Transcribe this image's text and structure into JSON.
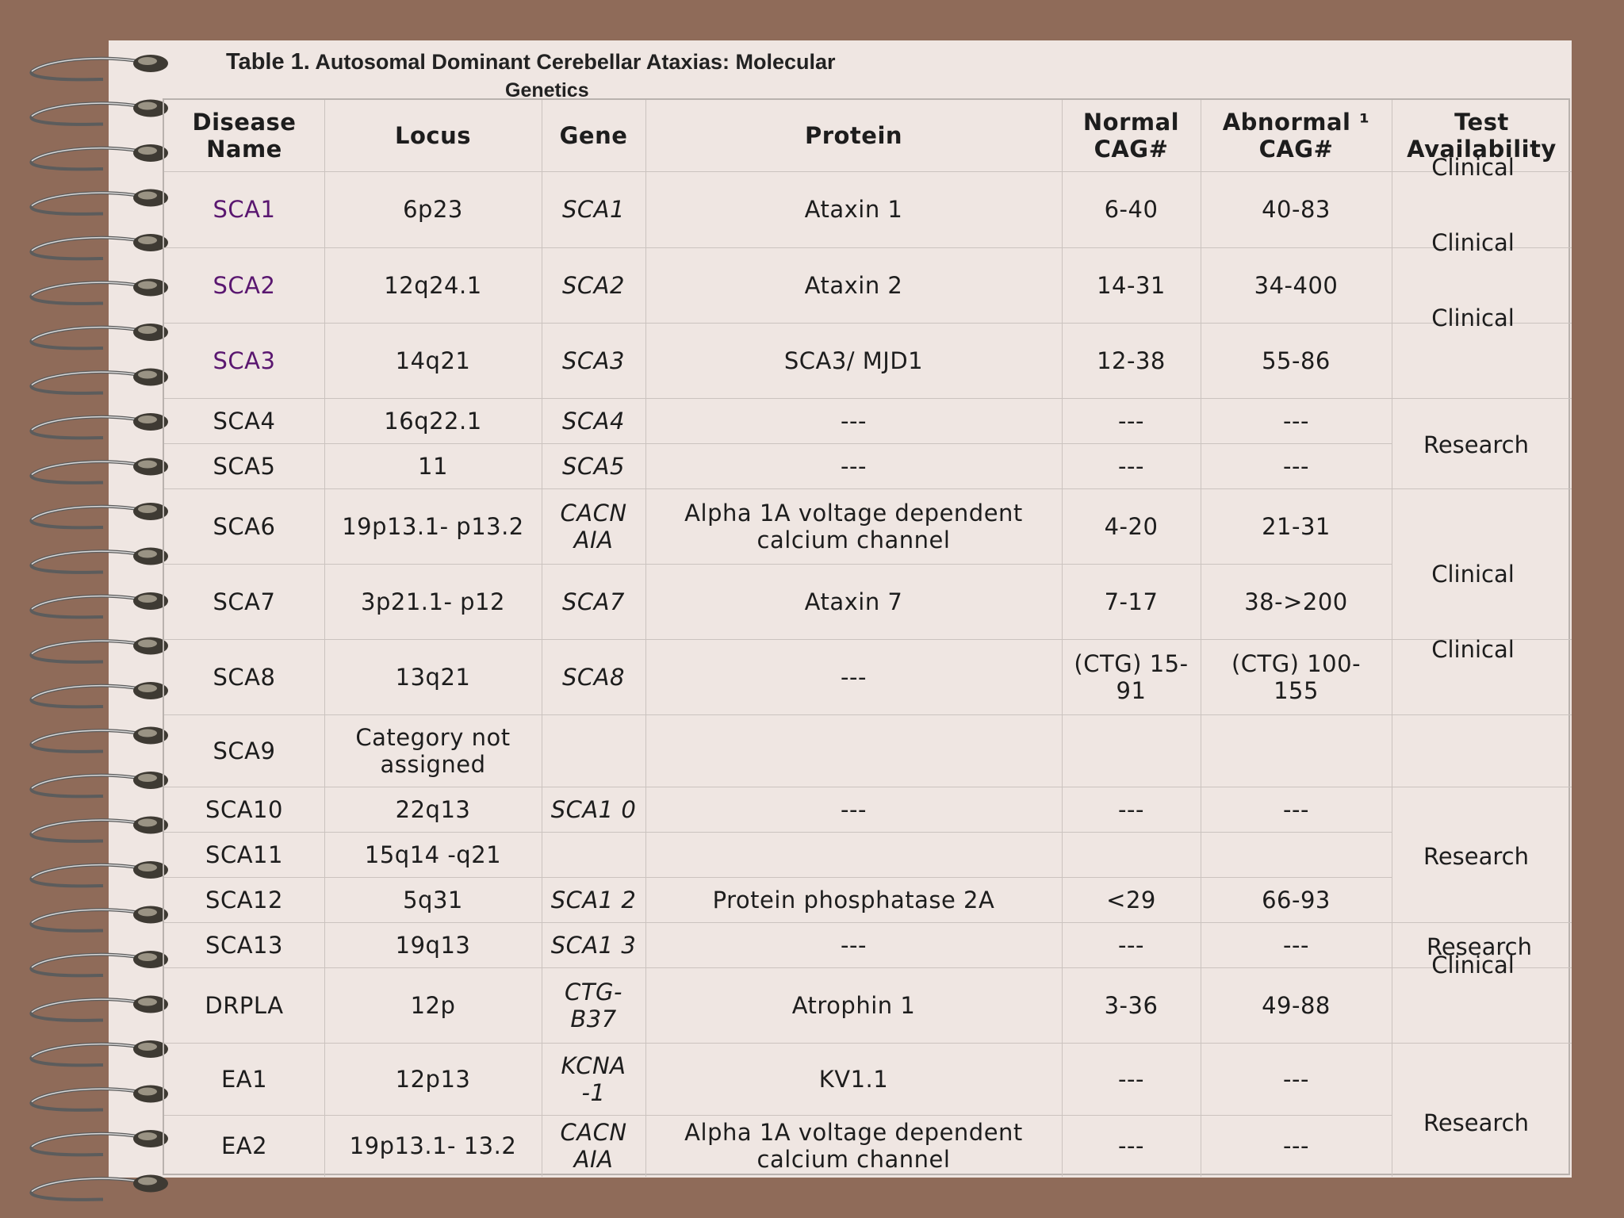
{
  "title": {
    "prefix": "Table 1.",
    "main": "Autosomal Dominant Cerebellar Ataxias: Molecular",
    "continuation": "Genetics"
  },
  "headers": {
    "disease": "Disease Name",
    "locus": "Locus",
    "gene": "Gene",
    "protein": "Protein",
    "normal": "Normal CAG#",
    "abnormal": "Abnormal ¹ CAG#",
    "test": "Test Availability"
  },
  "rows": [
    {
      "disease": "SCA1",
      "locus": "6p23",
      "gene": "SCA1",
      "protein": "Ataxin 1",
      "normal": "6-40",
      "abnormal": "40-83"
    },
    {
      "disease": "SCA2",
      "locus": "12q24.1",
      "gene": "SCA2",
      "protein": "Ataxin 2",
      "normal": "14-31",
      "abnormal": "34-400"
    },
    {
      "disease": "SCA3",
      "locus": "14q21",
      "gene": "SCA3",
      "protein": "SCA3/ MJD1",
      "normal": "12-38",
      "abnormal": "55-86"
    },
    {
      "disease": "SCA4",
      "locus": "16q22.1",
      "gene": "SCA4",
      "protein": "---",
      "normal": "---",
      "abnormal": "---"
    },
    {
      "disease": "SCA5",
      "locus": "11",
      "gene": "SCA5",
      "protein": "---",
      "normal": "---",
      "abnormal": "---"
    },
    {
      "disease": "SCA6",
      "locus": "19p13.1- p13.2",
      "gene": "CACN AIA",
      "protein": "Alpha 1A voltage dependent calcium channel",
      "normal": "4-20",
      "abnormal": "21-31"
    },
    {
      "disease": "SCA7",
      "locus": "3p21.1- p12",
      "gene": "SCA7",
      "protein": "Ataxin 7",
      "normal": "7-17",
      "abnormal": "38->200"
    },
    {
      "disease": "SCA8",
      "locus": "13q21",
      "gene": "SCA8",
      "protein": "---",
      "normal": "(CTG) 15-91",
      "abnormal": "(CTG) 100- 155"
    },
    {
      "disease": "SCA9",
      "locus": "Category not assigned",
      "gene": "",
      "protein": "",
      "normal": "",
      "abnormal": ""
    },
    {
      "disease": "SCA10",
      "locus": "22q13",
      "gene": "SCA1 0",
      "protein": "---",
      "normal": "---",
      "abnormal": "---"
    },
    {
      "disease": "SCA11",
      "locus": "15q14 -q21",
      "gene": "",
      "protein": "",
      "normal": "",
      "abnormal": ""
    },
    {
      "disease": "SCA12",
      "locus": "5q31",
      "gene": "SCA1 2",
      "protein": "Protein phosphatase 2A",
      "normal": "<29",
      "abnormal": "66-93"
    },
    {
      "disease": "SCA13",
      "locus": "19q13",
      "gene": "SCA1 3",
      "protein": "---",
      "normal": "---",
      "abnormal": "---"
    },
    {
      "disease": "DRPLA",
      "locus": "12p",
      "gene": "CTG- B37",
      "protein": "Atrophin 1",
      "normal": "3-36",
      "abnormal": "49-88"
    },
    {
      "disease": "EA1",
      "locus": "12p13",
      "gene": "KCNA -1",
      "protein": "KV1.1",
      "normal": "---",
      "abnormal": "---"
    },
    {
      "disease": "EA2",
      "locus": "19p13.1- 13.2",
      "gene": "CACN AIA",
      "protein": "Alpha 1A voltage dependent calcium channel",
      "normal": "---",
      "abnormal": "---"
    }
  ],
  "test_availability": [
    "Clinical",
    "Clinical",
    "Clinical",
    "Research",
    "Clinical",
    "Clinical",
    "Research",
    "Research",
    "Clinical",
    "Research"
  ],
  "colors": {
    "background": "#8f6b59",
    "paper": "#efe6e2",
    "link": "#5a1770",
    "grid": "#cbc3bf"
  },
  "icons": [
    "spiral-binding-icon"
  ]
}
